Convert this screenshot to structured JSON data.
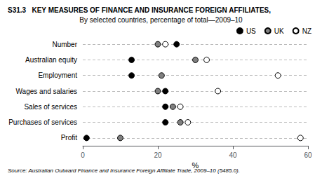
{
  "chart_data": {
    "type": "dot",
    "orientation": "horizontal",
    "title": "S31.3   KEY MEASURES OF FINANCE AND INSURANCE FOREIGN AFFILIATES,",
    "subtitle": "By selected countries, percentage of total—2009–10",
    "annotations": [
      "Source: Australian Outward Finance and Insurance Foreign Affiliate Trade, 2009–10 (5485.0)."
    ],
    "categories": [
      "Number",
      "Australian equity",
      "Employment",
      "Wages and salaries",
      "Sales of services",
      "Purchases of services",
      "Profit"
    ],
    "series": [
      {
        "name": "US",
        "color": "#000000",
        "values": [
          25,
          13,
          13,
          22,
          22,
          22,
          1
        ]
      },
      {
        "name": "UK",
        "color": "#808080",
        "values": [
          20,
          30,
          21,
          20,
          24,
          26,
          10
        ]
      },
      {
        "name": "NZ",
        "color": "#ffffff",
        "values": [
          22,
          33,
          52,
          36,
          26,
          28,
          58
        ]
      }
    ],
    "marker": "circle",
    "xlabel": "%",
    "xlim": [
      0,
      60
    ],
    "xticks": [
      0,
      20,
      40,
      60
    ],
    "grid": true,
    "legend": "upper right"
  }
}
